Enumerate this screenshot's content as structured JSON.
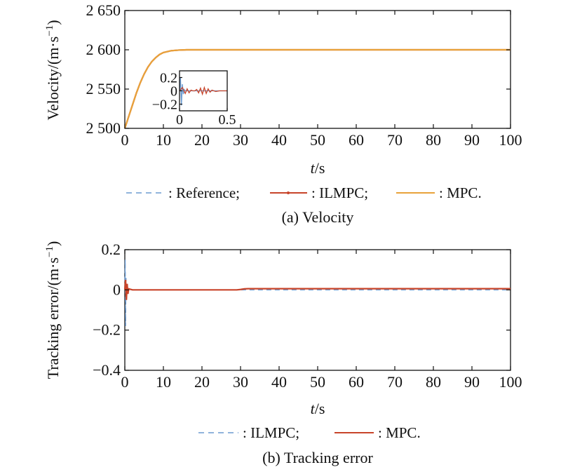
{
  "chart_data": [
    {
      "type": "line",
      "id": "velocity",
      "ylabel_main": "Velocity/(m·s",
      "ylabel_sup": "−1",
      "ylabel_close": ")",
      "xlabel_italic": "t",
      "xlabel_rest": "/s",
      "xlim": [
        0,
        100
      ],
      "ylim": [
        2500,
        2650
      ],
      "x_ticks": [
        0,
        10,
        20,
        30,
        40,
        50,
        60,
        70,
        80,
        90,
        100
      ],
      "y_ticks": [
        2500,
        2550,
        2600,
        2650
      ],
      "y_tick_labels": [
        "2 500",
        "2 550",
        "2 600",
        "2 650"
      ],
      "series": [
        {
          "name": ": Reference;",
          "style": "dashed",
          "color": "#6b9bd1",
          "x": [
            0,
            1,
            2,
            3,
            4,
            5,
            6,
            7,
            8,
            9,
            10,
            12,
            14,
            16,
            18,
            20,
            30,
            100
          ],
          "y": [
            2500,
            2515,
            2530,
            2545,
            2558,
            2569,
            2578,
            2585,
            2590,
            2594,
            2596.5,
            2598.8,
            2599.6,
            2600,
            2600,
            2600,
            2600,
            2600
          ]
        },
        {
          "name": ": ILMPC;",
          "style": "solid-marker",
          "color": "#c8442a",
          "x": [
            0,
            1,
            2,
            3,
            4,
            5,
            6,
            7,
            8,
            9,
            10,
            12,
            14,
            16,
            18,
            20,
            30,
            100
          ],
          "y": [
            2500,
            2515,
            2530,
            2545,
            2558,
            2569,
            2578,
            2585,
            2590,
            2594,
            2596.5,
            2598.8,
            2599.6,
            2600,
            2600,
            2600,
            2600,
            2600
          ]
        },
        {
          "name": ": MPC.",
          "style": "solid",
          "color": "#e8a23a",
          "x": [
            0,
            1,
            2,
            3,
            4,
            5,
            6,
            7,
            8,
            9,
            10,
            12,
            14,
            16,
            18,
            20,
            30,
            100
          ],
          "y": [
            2500,
            2515,
            2530,
            2545,
            2558,
            2569,
            2578,
            2585,
            2590,
            2594,
            2596.5,
            2598.8,
            2599.6,
            2600,
            2600,
            2600,
            2600,
            2600
          ]
        }
      ],
      "inset": {
        "xlim": [
          0,
          0.5
        ],
        "ylim": [
          -0.3,
          0.3
        ],
        "x_ticks": [
          0,
          0.5
        ],
        "x_tick_labels": [
          "0",
          "0.5"
        ],
        "y_ticks": [
          0.2,
          0,
          -0.2
        ],
        "y_tick_labels": [
          "0.2",
          "0",
          "−0.2"
        ],
        "series": [
          {
            "name": "reference-error",
            "color": "#6b9bd1",
            "x": [
              0,
              0.01,
              0.02,
              0.03,
              0.04,
              0.05,
              0.06,
              0.5
            ],
            "y": [
              0,
              0.2,
              -0.22,
              0.1,
              -0.05,
              0.02,
              0,
              0
            ]
          },
          {
            "name": "ilmpc-error",
            "color": "#c8442a",
            "x": [
              0,
              0.03,
              0.06,
              0.08,
              0.1,
              0.12,
              0.14,
              0.16,
              0.18,
              0.2,
              0.22,
              0.24,
              0.26,
              0.28,
              0.3,
              0.32,
              0.34,
              0.38,
              0.42,
              0.46,
              0.5
            ],
            "y": [
              0,
              0.05,
              -0.04,
              0.03,
              -0.03,
              0.01,
              0,
              0,
              0.02,
              -0.03,
              0.04,
              -0.05,
              0.05,
              -0.04,
              0.03,
              -0.02,
              0.01,
              -0.01,
              0,
              0,
              0
            ]
          }
        ]
      },
      "legend": {
        "placement": "below",
        "caption": "(a) Velocity"
      }
    },
    {
      "type": "line",
      "id": "tracking-error",
      "ylabel_main": "Tracking error/(m·s",
      "ylabel_sup": "−1",
      "ylabel_close": ")",
      "xlabel_italic": "t",
      "xlabel_rest": "/s",
      "xlim": [
        0,
        100
      ],
      "ylim": [
        -0.4,
        0.2
      ],
      "x_ticks": [
        0,
        10,
        20,
        30,
        40,
        50,
        60,
        70,
        80,
        90,
        100
      ],
      "y_ticks": [
        0.2,
        0,
        -0.2,
        -0.4
      ],
      "y_tick_labels": [
        "0.2",
        "0",
        "−0.2",
        "−0.4"
      ],
      "series": [
        {
          "name": ": ILMPC;",
          "style": "dashed",
          "color": "#6b9bd1",
          "x": [
            0,
            0.1,
            0.2,
            0.3,
            0.4,
            0.5,
            1,
            100
          ],
          "y": [
            0,
            0.15,
            -0.18,
            0.06,
            -0.03,
            0.01,
            0,
            0
          ]
        },
        {
          "name": ": MPC.",
          "style": "solid",
          "color": "#c8442a",
          "x": [
            0,
            0.2,
            0.4,
            0.6,
            0.8,
            1,
            2,
            5,
            10,
            20,
            29,
            30,
            31,
            32,
            40,
            50,
            60,
            70,
            80,
            90,
            100
          ],
          "y": [
            0,
            0.05,
            -0.05,
            0.03,
            -0.02,
            0.005,
            0,
            0,
            0,
            0,
            0,
            0.002,
            0.005,
            0.006,
            0.006,
            0.006,
            0.006,
            0.006,
            0.006,
            0.006,
            0.006
          ]
        }
      ],
      "legend": {
        "placement": "below",
        "caption": "(b) Tracking error"
      }
    }
  ]
}
